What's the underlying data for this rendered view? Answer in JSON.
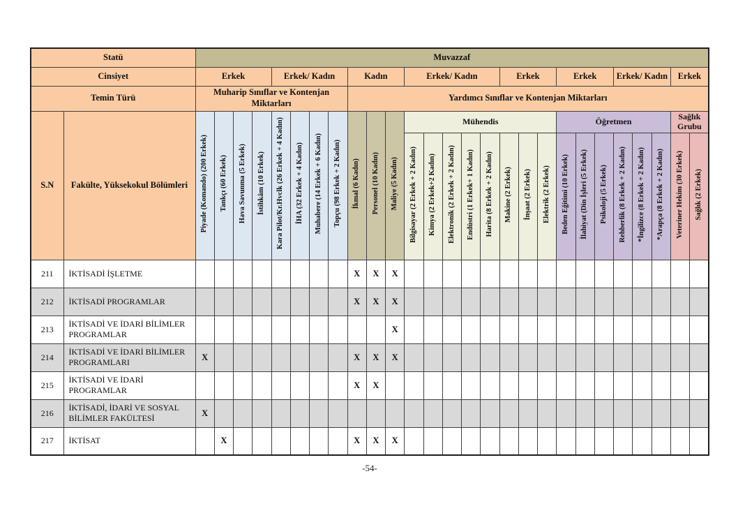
{
  "header": {
    "statu_label": "Statü",
    "statu_value": "Muvazzaf",
    "cinsiyet_label": "Cinsiyet",
    "cinsiyet_groups": [
      {
        "label": "Erkek",
        "span": 4
      },
      {
        "label": "Erkek/ Kadın",
        "span": 4
      },
      {
        "label": "Kadın",
        "span": 3
      },
      {
        "label": "Erkek/ Kadın",
        "span": 5
      },
      {
        "label": "Erkek",
        "span": 3
      },
      {
        "label": "Erkek",
        "span": 3
      },
      {
        "label": "Erkek/ Kadın",
        "span": 3
      },
      {
        "label": "Erkek",
        "span": 2
      }
    ],
    "temin_label": "Temin Türü",
    "temin_groups": [
      {
        "label": "Muharip Sınıflar ve Kontenjan Miktarları",
        "span": 8
      },
      {
        "label": "Yardımcı Sınıflar ve Kontenjan Miktarları",
        "span": 19
      }
    ],
    "sn_label": "S.N",
    "fakulte_label": "Fakülte, Yüksekokul Bölümleri"
  },
  "column_groups": [
    {
      "id": "muharip",
      "label": "",
      "color_key": "blue",
      "full_height": true,
      "columns": [
        "Piyade (Komando) (200 Erkek)",
        "Tankçı (60 Erkek)",
        "Hava Savunma (5 Erkek)",
        "İstihkâm (10 Erkek)",
        "Kara Pilot/Kr.Hvclk (26 Erkek + 4 Kadın)",
        "İHA (32 Erkek + 4 Kadın)",
        "Muhabere (14 Erkek + 6 Kadın)",
        "Topçu (98 Erkek + 2 Kadın)"
      ]
    },
    {
      "id": "kadin-siniflar",
      "label": "",
      "color_key": "olive",
      "full_height": true,
      "columns": [
        "İkmal (6 Kadın)",
        "Personel (10 Kadın)",
        "Maliye (5 Kadın)"
      ]
    },
    {
      "id": "muhendis",
      "label": "Mühendis",
      "color_key": "green",
      "full_height": false,
      "columns": [
        "Bilgisayar (2 Erkek + 2 Kadın)",
        "Kimya (2 Erkek+2 Kadın)",
        "Elektronik (2 Erkek + 2 Kadın)",
        "Endüstri (1 Erkek+ 1 Kadın)",
        "Harita (8 Erkek + 2 Kadın)",
        "Makine (2 Erkek)",
        "İnşaat (2 Erkek)",
        "Elektrik (2 Erkek)"
      ]
    },
    {
      "id": "ogretmen",
      "label": "Öğretmen",
      "color_key": "purple",
      "full_height": false,
      "columns": [
        "Beden Eğitimi (10 Erkek)",
        "İlahiyat (Din İşleri (5 Erkek)",
        "Psikoloji (5 Erkek)",
        "Rehberlik (8 Erkek + 2 Kadın)",
        "*İngilizce (8 Erkek + 2 Kadın)",
        "*Arapça (8 Erkek + 2 Kadın)"
      ]
    },
    {
      "id": "saglik-grubu",
      "label": "Sağlık Grubu",
      "color_key": "pink",
      "full_height": false,
      "columns": [
        "Veteriner Hekim  (30 Erkek)",
        "Sağlık (2 Erkek)"
      ]
    }
  ],
  "colors": {
    "peach": "#FBCCA3",
    "olive_dark": "#C2BB93",
    "olive": "#CCC6A7",
    "blue": "#DDE7F2",
    "green": "#EEEFDD",
    "purple": "#C9BDD9",
    "pink": "#EABBB9",
    "row_alt": "#D9D9D9",
    "row_base": "#FFFFFF"
  },
  "mark_symbol": "X",
  "rows": [
    {
      "no": "211",
      "label": "İKTİSADİ İŞLETME",
      "marks": [
        8,
        9,
        10
      ]
    },
    {
      "no": "212",
      "label": "İKTİSADİ PROGRAMLAR",
      "marks": [
        8,
        9,
        10
      ]
    },
    {
      "no": "213",
      "label": "İKTİSADİ VE İDARİ BİLİMLER PROGRAMLAR",
      "marks": [
        10
      ]
    },
    {
      "no": "214",
      "label": "İKTİSADİ VE İDARİ BİLİMLER PROGRAMLARI",
      "marks": [
        0,
        8,
        9,
        10
      ]
    },
    {
      "no": "215",
      "label": "İKTİSADİ VE İDARİ PROGRAMLAR",
      "marks": [
        8,
        9
      ]
    },
    {
      "no": "216",
      "label": "İKTİSADİ, İDARİ VE SOSYAL BİLİMLER FAKÜLTESİ",
      "marks": [
        0
      ]
    },
    {
      "no": "217",
      "label": "İKTİSAT",
      "marks": [
        1,
        8,
        9,
        10
      ]
    }
  ],
  "footer": {
    "page_number": "-54-"
  }
}
